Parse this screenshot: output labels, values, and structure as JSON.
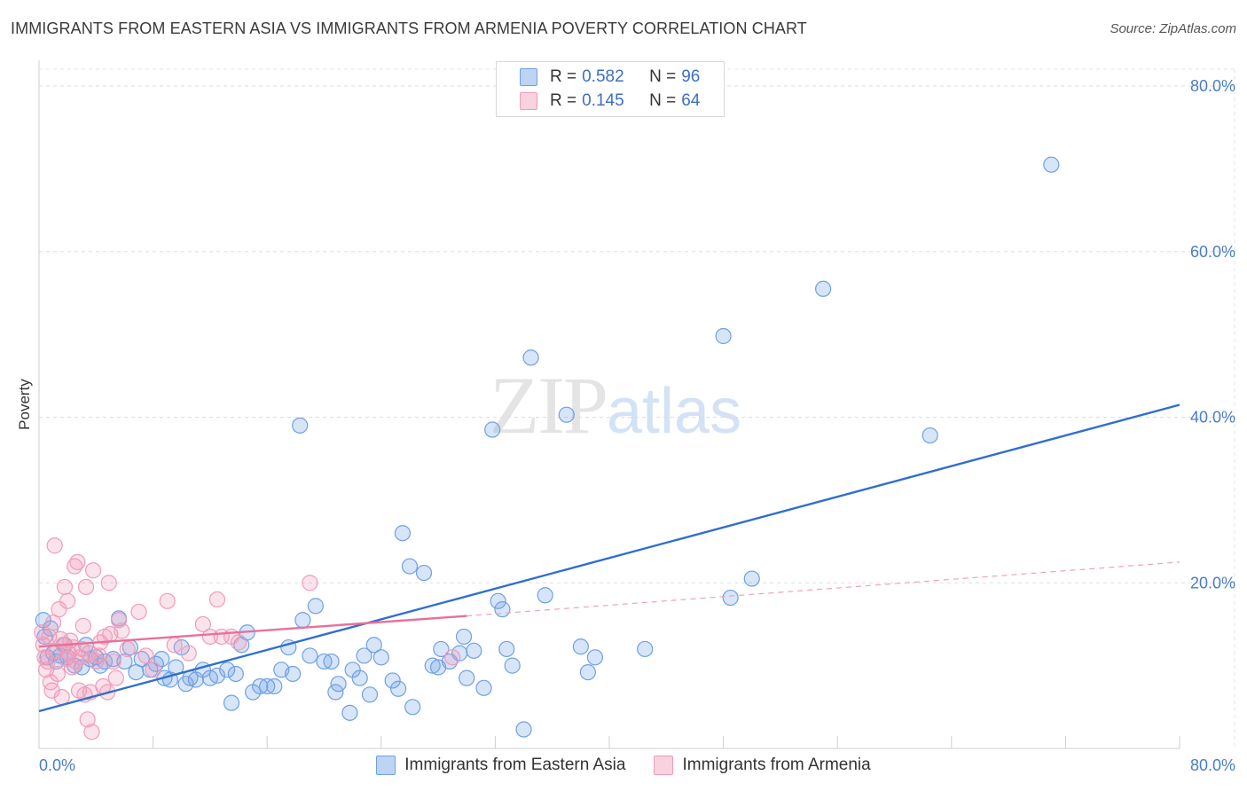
{
  "title": "IMMIGRANTS FROM EASTERN ASIA VS IMMIGRANTS FROM ARMENIA POVERTY CORRELATION CHART",
  "source": "Source: ZipAtlas.com",
  "watermark": {
    "zip": "ZIP",
    "atlas": "atlas"
  },
  "legend": {
    "rows": [
      {
        "r_label": "R =",
        "r_value": "0.582",
        "n_label": "N =",
        "n_value": "96",
        "color": "#6fa0e6"
      },
      {
        "r_label": "R =",
        "r_value": "0.145",
        "n_label": "N =",
        "n_value": "64",
        "color": "#f19bb8"
      }
    ]
  },
  "bottom_legend": [
    {
      "label": "Immigrants from Eastern Asia",
      "color": "#6fa0e6"
    },
    {
      "label": "Immigrants from Armenia",
      "color": "#f19bb8"
    }
  ],
  "chart_data": {
    "type": "scatter",
    "ylabel": "Poverty",
    "xlim": [
      0,
      80
    ],
    "ylim": [
      0,
      80
    ],
    "x_tick_labels": [
      "0.0%",
      "80.0%"
    ],
    "y_ticks": [
      20,
      40,
      60,
      80
    ],
    "y_tick_labels": [
      "20.0%",
      "40.0%",
      "60.0%",
      "80.0%"
    ],
    "grid": true,
    "series": [
      {
        "name": "Immigrants from Eastern Asia",
        "color": "#6fa0e6",
        "trend": {
          "x": [
            0,
            80
          ],
          "y": [
            4.5,
            41.5
          ],
          "style": "solid"
        },
        "points": [
          [
            0.3,
            15.5
          ],
          [
            0.4,
            13.5
          ],
          [
            0.6,
            11.0
          ],
          [
            0.8,
            14.5
          ],
          [
            1.0,
            11.5
          ],
          [
            1.2,
            10.5
          ],
          [
            1.5,
            11.2
          ],
          [
            1.8,
            12.5
          ],
          [
            2.0,
            11.0
          ],
          [
            2.5,
            10.0
          ],
          [
            3.0,
            9.8
          ],
          [
            3.3,
            12.5
          ],
          [
            3.6,
            10.8
          ],
          [
            4.0,
            11.0
          ],
          [
            4.3,
            10.0
          ],
          [
            4.6,
            10.5
          ],
          [
            5.2,
            10.8
          ],
          [
            5.6,
            15.7
          ],
          [
            6.0,
            10.5
          ],
          [
            6.4,
            12.2
          ],
          [
            6.8,
            9.2
          ],
          [
            7.2,
            10.8
          ],
          [
            7.8,
            9.5
          ],
          [
            8.2,
            10.2
          ],
          [
            8.6,
            10.8
          ],
          [
            8.8,
            8.5
          ],
          [
            9.2,
            8.3
          ],
          [
            9.6,
            9.8
          ],
          [
            10.0,
            12.2
          ],
          [
            10.3,
            7.8
          ],
          [
            10.6,
            8.5
          ],
          [
            11.0,
            8.3
          ],
          [
            11.5,
            9.5
          ],
          [
            12.0,
            8.5
          ],
          [
            12.5,
            8.8
          ],
          [
            13.2,
            9.5
          ],
          [
            13.5,
            5.5
          ],
          [
            13.8,
            9.0
          ],
          [
            14.2,
            12.5
          ],
          [
            14.6,
            14.0
          ],
          [
            15.0,
            6.8
          ],
          [
            15.5,
            7.5
          ],
          [
            16.0,
            7.5
          ],
          [
            16.5,
            7.5
          ],
          [
            17.0,
            9.5
          ],
          [
            17.5,
            12.2
          ],
          [
            17.8,
            9.0
          ],
          [
            18.3,
            39.0
          ],
          [
            18.5,
            15.5
          ],
          [
            19.0,
            11.2
          ],
          [
            19.4,
            17.2
          ],
          [
            20.0,
            10.5
          ],
          [
            20.5,
            10.5
          ],
          [
            20.8,
            6.8
          ],
          [
            21.0,
            7.8
          ],
          [
            21.8,
            4.3
          ],
          [
            22.0,
            9.5
          ],
          [
            22.5,
            8.5
          ],
          [
            22.8,
            11.2
          ],
          [
            23.2,
            6.5
          ],
          [
            23.5,
            12.5
          ],
          [
            24.0,
            11.0
          ],
          [
            24.8,
            8.2
          ],
          [
            25.2,
            7.2
          ],
          [
            25.5,
            26.0
          ],
          [
            26.0,
            22.0
          ],
          [
            26.2,
            5.0
          ],
          [
            27.0,
            21.2
          ],
          [
            27.6,
            10.0
          ],
          [
            28.0,
            9.8
          ],
          [
            28.2,
            12.0
          ],
          [
            28.8,
            10.5
          ],
          [
            29.5,
            11.5
          ],
          [
            29.8,
            13.5
          ],
          [
            30.0,
            8.5
          ],
          [
            30.5,
            11.8
          ],
          [
            31.2,
            7.3
          ],
          [
            31.8,
            38.5
          ],
          [
            32.2,
            17.8
          ],
          [
            32.5,
            16.8
          ],
          [
            32.8,
            12.0
          ],
          [
            33.2,
            10.0
          ],
          [
            34.0,
            2.3
          ],
          [
            34.5,
            47.2
          ],
          [
            35.5,
            18.5
          ],
          [
            37.0,
            40.3
          ],
          [
            38.0,
            12.3
          ],
          [
            38.5,
            9.2
          ],
          [
            39.0,
            11.0
          ],
          [
            42.5,
            12.0
          ],
          [
            48.0,
            49.8
          ],
          [
            48.5,
            18.2
          ],
          [
            50.0,
            20.5
          ],
          [
            55.0,
            55.5
          ],
          [
            62.5,
            37.8
          ],
          [
            71.0,
            70.5
          ]
        ]
      },
      {
        "name": "Immigrants from Armenia",
        "color": "#f19bb8",
        "trend": {
          "x": [
            0,
            30
          ],
          "y": [
            12.3,
            16.0
          ],
          "style": "solid"
        },
        "trend_ext": {
          "x": [
            30,
            80
          ],
          "y": [
            16.0,
            22.5
          ],
          "style": "dashed"
        },
        "points": [
          [
            0.2,
            14.0
          ],
          [
            0.3,
            12.5
          ],
          [
            0.4,
            11.0
          ],
          [
            0.5,
            9.5
          ],
          [
            0.6,
            10.5
          ],
          [
            0.7,
            13.5
          ],
          [
            0.8,
            8.0
          ],
          [
            0.9,
            7.0
          ],
          [
            1.0,
            15.2
          ],
          [
            1.1,
            24.5
          ],
          [
            1.2,
            11.8
          ],
          [
            1.3,
            9.0
          ],
          [
            1.4,
            16.8
          ],
          [
            1.5,
            13.2
          ],
          [
            1.6,
            6.2
          ],
          [
            1.7,
            12.5
          ],
          [
            1.8,
            19.5
          ],
          [
            1.9,
            10.8
          ],
          [
            2.0,
            17.8
          ],
          [
            2.1,
            11.5
          ],
          [
            2.2,
            13.0
          ],
          [
            2.3,
            9.8
          ],
          [
            2.4,
            12.2
          ],
          [
            2.5,
            22.0
          ],
          [
            2.6,
            10.5
          ],
          [
            2.7,
            22.5
          ],
          [
            2.8,
            7.0
          ],
          [
            2.9,
            11.0
          ],
          [
            3.0,
            12.0
          ],
          [
            3.1,
            14.8
          ],
          [
            3.2,
            6.5
          ],
          [
            3.3,
            19.5
          ],
          [
            3.4,
            3.5
          ],
          [
            3.5,
            11.5
          ],
          [
            3.6,
            6.8
          ],
          [
            3.7,
            2.0
          ],
          [
            3.8,
            21.5
          ],
          [
            4.0,
            10.5
          ],
          [
            4.2,
            11.2
          ],
          [
            4.3,
            12.8
          ],
          [
            4.5,
            7.5
          ],
          [
            4.6,
            13.5
          ],
          [
            4.8,
            6.8
          ],
          [
            4.9,
            20.0
          ],
          [
            5.0,
            13.8
          ],
          [
            5.2,
            10.5
          ],
          [
            5.4,
            8.5
          ],
          [
            5.6,
            15.5
          ],
          [
            5.8,
            14.2
          ],
          [
            7.0,
            16.5
          ],
          [
            8.0,
            9.5
          ],
          [
            9.0,
            17.8
          ],
          [
            9.5,
            12.5
          ],
          [
            10.5,
            11.5
          ],
          [
            11.5,
            15.0
          ],
          [
            12.0,
            13.5
          ],
          [
            12.5,
            18.0
          ],
          [
            12.8,
            13.5
          ],
          [
            13.5,
            13.5
          ],
          [
            14.0,
            12.8
          ],
          [
            19.0,
            20.0
          ],
          [
            29.0,
            11.0
          ],
          [
            6.2,
            12.0
          ],
          [
            7.5,
            11.2
          ]
        ]
      }
    ]
  }
}
